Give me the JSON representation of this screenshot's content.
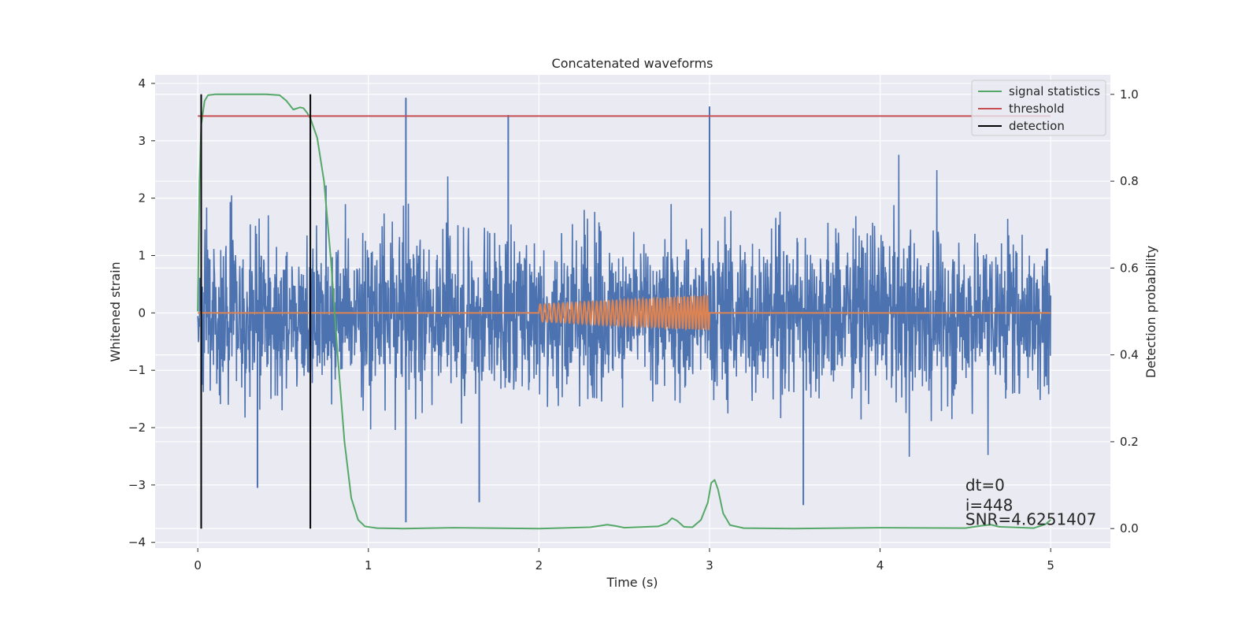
{
  "chart_data": {
    "type": "line",
    "title": "Concatenated waveforms",
    "xlabel": "Time (s)",
    "ylabel": "Whitened strain",
    "ylabel_right": "Detection probability",
    "xlim": [
      -0.25,
      5.35
    ],
    "ylim": [
      -4.1,
      4.15
    ],
    "ylim_right": [
      -0.045,
      1.045
    ],
    "xticks": [
      "0",
      "1",
      "2",
      "3",
      "4",
      "5"
    ],
    "yticks": [
      "−4",
      "−3",
      "−2",
      "−1",
      "0",
      "1",
      "2",
      "3",
      "4"
    ],
    "yticks_right": [
      "0.0",
      "0.2",
      "0.4",
      "0.6",
      "0.8",
      "1.0"
    ],
    "grid": true,
    "legend": {
      "placement": "upper right",
      "entries": [
        {
          "label": "signal statistics",
          "color": "#55a868"
        },
        {
          "label": "threshold",
          "color": "#c44e52"
        },
        {
          "label": "detection",
          "color": "#000000"
        }
      ]
    },
    "series": [
      {
        "role": "noise",
        "color": "#4c72b0",
        "x_range": [
          0,
          5
        ],
        "envelope_typical": 1.8,
        "peaks": [
          {
            "x": 1.22,
            "y": 3.75
          },
          {
            "x": 1.22,
            "y": -3.65
          },
          {
            "x": 1.82,
            "y": 3.45
          },
          {
            "x": 3.0,
            "y": 3.6
          },
          {
            "x": 1.65,
            "y": -3.3
          },
          {
            "x": 3.55,
            "y": -3.35
          },
          {
            "x": 0.35,
            "y": -3.05
          }
        ]
      },
      {
        "role": "signal",
        "color": "#dd8452",
        "x_range": [
          2.0,
          3.0
        ],
        "amplitude_start": 0.15,
        "amplitude_end": 0.3,
        "cycles": 45
      },
      {
        "name": "signal statistics",
        "color": "#55a868",
        "axis": "right",
        "x": [
          0,
          0.01,
          0.02,
          0.04,
          0.06,
          0.1,
          0.2,
          0.3,
          0.4,
          0.48,
          0.52,
          0.56,
          0.6,
          0.62,
          0.64,
          0.66,
          0.7,
          0.74,
          0.78,
          0.82,
          0.86,
          0.9,
          0.94,
          0.98,
          1.05,
          1.2,
          1.5,
          2.0,
          2.3,
          2.4,
          2.45,
          2.5,
          2.7,
          2.75,
          2.78,
          2.81,
          2.85,
          2.9,
          2.95,
          2.99,
          3.01,
          3.03,
          3.05,
          3.08,
          3.12,
          3.2,
          3.5,
          4.0,
          4.5,
          4.6,
          4.65,
          4.7,
          4.9,
          4.97,
          5.0
        ],
        "values": [
          0.5,
          0.8,
          0.93,
          0.985,
          0.998,
          1.0,
          1.0,
          1.0,
          1.0,
          0.998,
          0.985,
          0.965,
          0.97,
          0.968,
          0.958,
          0.945,
          0.9,
          0.8,
          0.62,
          0.4,
          0.2,
          0.07,
          0.02,
          0.005,
          0.001,
          0.0,
          0.002,
          0.0,
          0.003,
          0.009,
          0.006,
          0.002,
          0.005,
          0.012,
          0.024,
          0.018,
          0.004,
          0.003,
          0.02,
          0.06,
          0.105,
          0.112,
          0.09,
          0.035,
          0.008,
          0.001,
          0.0,
          0.002,
          0.001,
          0.007,
          0.009,
          0.004,
          0.001,
          0.01,
          0.02
        ]
      },
      {
        "name": "threshold",
        "color": "#c44e52",
        "axis": "right",
        "x": [
          0,
          5
        ],
        "values": [
          0.95,
          0.95
        ]
      },
      {
        "name": "detection",
        "color": "#000000",
        "axis": "right",
        "type": "vline",
        "x": [
          0.02,
          0.66
        ],
        "range": [
          0,
          1
        ]
      }
    ],
    "annotations": [
      {
        "text": "dt=0",
        "x": 4.5,
        "y": -3.0
      },
      {
        "text": "i=448",
        "x": 4.5,
        "y": -3.35
      },
      {
        "text": "SNR=4.6251407",
        "x": 4.5,
        "y": -3.6
      }
    ]
  }
}
